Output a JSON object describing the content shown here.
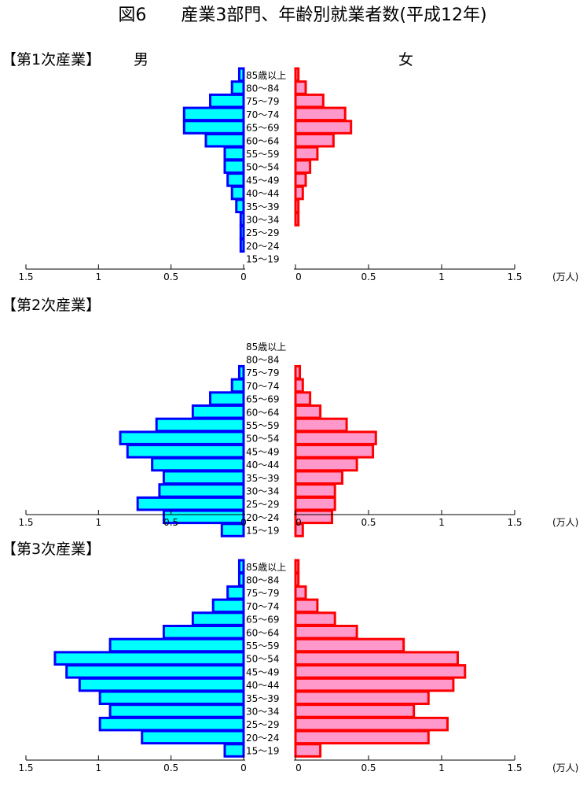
{
  "title": "図6　　産業3部門、年齢別就業者数(平成12年)",
  "male_label": "男",
  "female_label": "女",
  "unit": "(万人)",
  "colors": {
    "male_fill": "#00ffff",
    "male_stroke": "#0000ff",
    "female_fill": "#ff99cc",
    "female_stroke": "#ff0000",
    "axis": "#000000"
  },
  "chart_data": [
    {
      "type": "bar",
      "title": "【第1次産業】",
      "categories": [
        "85歳以上",
        "80～84",
        "75～79",
        "70～74",
        "65～69",
        "60～64",
        "55～59",
        "50～54",
        "45～49",
        "40～44",
        "35～39",
        "30～34",
        "25～29",
        "20～24",
        "15～19"
      ],
      "series": [
        {
          "name": "男",
          "values": [
            0.03,
            0.08,
            0.23,
            0.41,
            0.41,
            0.26,
            0.13,
            0.13,
            0.11,
            0.08,
            0.05,
            0.02,
            0.02,
            0.02,
            0.0
          ]
        },
        {
          "name": "女",
          "values": [
            0.02,
            0.07,
            0.19,
            0.34,
            0.38,
            0.26,
            0.15,
            0.1,
            0.07,
            0.05,
            0.02,
            0.02,
            0.0,
            0.0,
            0.0
          ]
        }
      ],
      "x_ticks_left": [
        "1.5",
        "1",
        "0.5",
        "0"
      ],
      "x_ticks_right": [
        "0",
        "0.5",
        "1",
        "1.5"
      ],
      "xlim": [
        0,
        1.5
      ]
    },
    {
      "type": "bar",
      "title": "【第2次産業】",
      "categories": [
        "85歳以上",
        "80～84",
        "75～79",
        "70～74",
        "65～69",
        "60～64",
        "55～59",
        "50～54",
        "45～49",
        "40～44",
        "35～39",
        "30～34",
        "25～29",
        "20～24",
        "15～19"
      ],
      "series": [
        {
          "name": "男",
          "values": [
            0.0,
            0.0,
            0.03,
            0.08,
            0.23,
            0.35,
            0.6,
            0.85,
            0.8,
            0.63,
            0.55,
            0.58,
            0.73,
            0.55,
            0.15
          ]
        },
        {
          "name": "女",
          "values": [
            0.0,
            0.0,
            0.03,
            0.05,
            0.1,
            0.17,
            0.35,
            0.55,
            0.53,
            0.42,
            0.32,
            0.27,
            0.27,
            0.25,
            0.05
          ]
        }
      ],
      "x_ticks_left": [
        "1.5",
        "1",
        "0.5",
        "0"
      ],
      "x_ticks_right": [
        "0",
        "0.5",
        "1",
        "1.5"
      ],
      "xlim": [
        0,
        1.5
      ]
    },
    {
      "type": "bar",
      "title": "【第3次産業】",
      "categories": [
        "85歳以上",
        "80～84",
        "75～79",
        "70～74",
        "65～69",
        "60～64",
        "55～59",
        "50～54",
        "45～49",
        "40～44",
        "35～39",
        "30～34",
        "25～29",
        "20～24",
        "15～19"
      ],
      "series": [
        {
          "name": "男",
          "values": [
            0.03,
            0.03,
            0.11,
            0.21,
            0.35,
            0.55,
            0.92,
            1.3,
            1.22,
            1.13,
            0.99,
            0.92,
            0.99,
            0.7,
            0.13
          ]
        },
        {
          "name": "女",
          "values": [
            0.02,
            0.02,
            0.07,
            0.15,
            0.27,
            0.42,
            0.74,
            1.11,
            1.16,
            1.08,
            0.91,
            0.81,
            1.04,
            0.91,
            0.17
          ]
        }
      ],
      "x_ticks_left": [
        "1.5",
        "1",
        "0.5",
        "0"
      ],
      "x_ticks_right": [
        "0",
        "0.5",
        "1",
        "1.5"
      ],
      "xlim": [
        0,
        1.5
      ]
    }
  ]
}
